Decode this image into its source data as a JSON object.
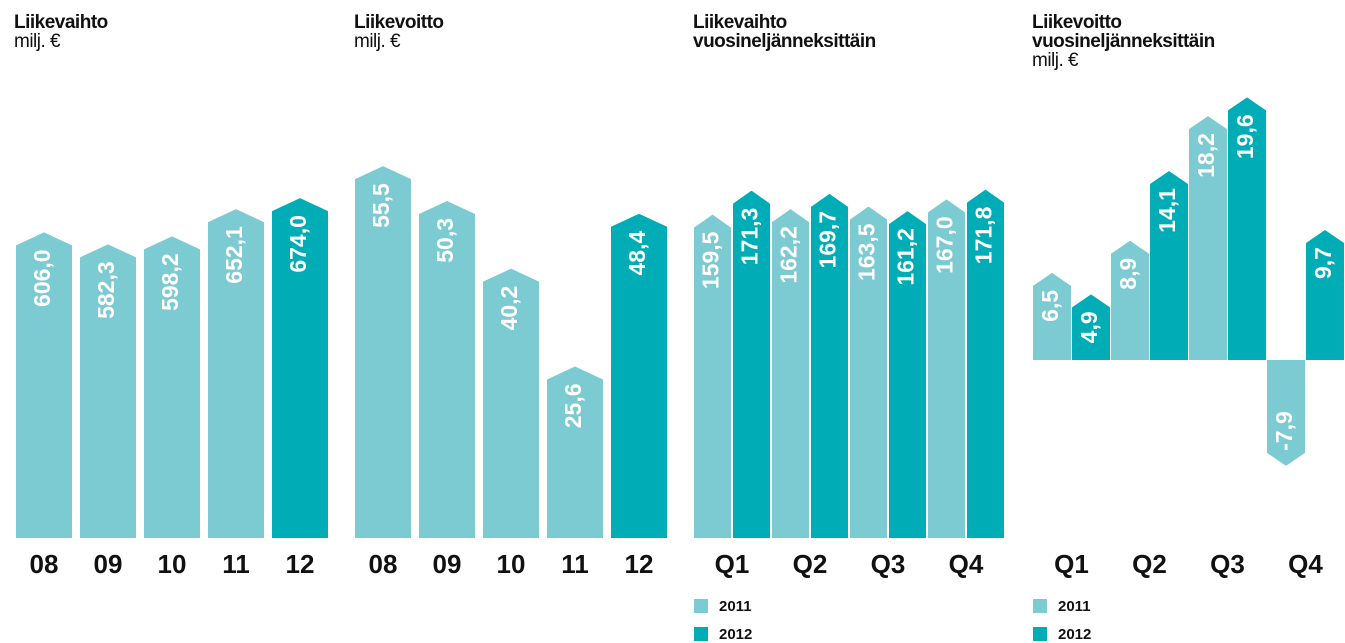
{
  "chart_data": [
    {
      "type": "bar",
      "title": "Liikevaihto",
      "subtitle": "milj. €",
      "categories": [
        "08",
        "09",
        "10",
        "11",
        "12"
      ],
      "values": [
        606.0,
        582.3,
        598.2,
        652.1,
        674.0
      ],
      "value_labels": [
        "606,0",
        "582,3",
        "598,2",
        "652,1",
        "674,0"
      ],
      "colors": [
        "#7ccbd3",
        "#7ccbd3",
        "#7ccbd3",
        "#7ccbd3",
        "#00adb7"
      ],
      "ylim": [
        0,
        700
      ]
    },
    {
      "type": "bar",
      "title": "Liikevoitto",
      "subtitle": "milj. €",
      "categories": [
        "08",
        "09",
        "10",
        "11",
        "12"
      ],
      "values": [
        55.5,
        50.3,
        40.2,
        25.6,
        48.4
      ],
      "value_labels": [
        "55,5",
        "50,3",
        "40,2",
        "25,6",
        "48,4"
      ],
      "colors": [
        "#7ccbd3",
        "#7ccbd3",
        "#7ccbd3",
        "#7ccbd3",
        "#00adb7"
      ],
      "ylim": [
        0,
        60
      ]
    },
    {
      "type": "grouped_bar",
      "title": "Liikevaihto vuosineljänneksittäin",
      "categories": [
        "Q1",
        "Q2",
        "Q3",
        "Q4"
      ],
      "series": [
        {
          "name": "2011",
          "color": "#7ccbd3",
          "values": [
            159.5,
            162.2,
            163.5,
            167.0
          ],
          "value_labels": [
            "159,5",
            "162,2",
            "163,5",
            "167,0"
          ]
        },
        {
          "name": "2012",
          "color": "#00adb7",
          "values": [
            171.3,
            169.7,
            161.2,
            171.8
          ],
          "value_labels": [
            "171,3",
            "169,7",
            "161,2",
            "171,8"
          ]
        }
      ],
      "ylim": [
        0,
        180
      ]
    },
    {
      "type": "grouped_bar",
      "title": "Liikevoitto vuosineljänneksittäin",
      "subtitle": "milj. €",
      "categories": [
        "Q1",
        "Q2",
        "Q3",
        "Q4"
      ],
      "series": [
        {
          "name": "2011",
          "color": "#7ccbd3",
          "values": [
            6.5,
            8.9,
            18.2,
            -7.9
          ],
          "value_labels": [
            "6,5",
            "8,9",
            "18,2",
            "-7,9"
          ]
        },
        {
          "name": "2012",
          "color": "#00adb7",
          "values": [
            4.9,
            14.1,
            19.6,
            9.7
          ],
          "value_labels": [
            "4,9",
            "14,1",
            "19,6",
            "9,7"
          ]
        }
      ],
      "ylim": [
        -10,
        20
      ]
    }
  ]
}
